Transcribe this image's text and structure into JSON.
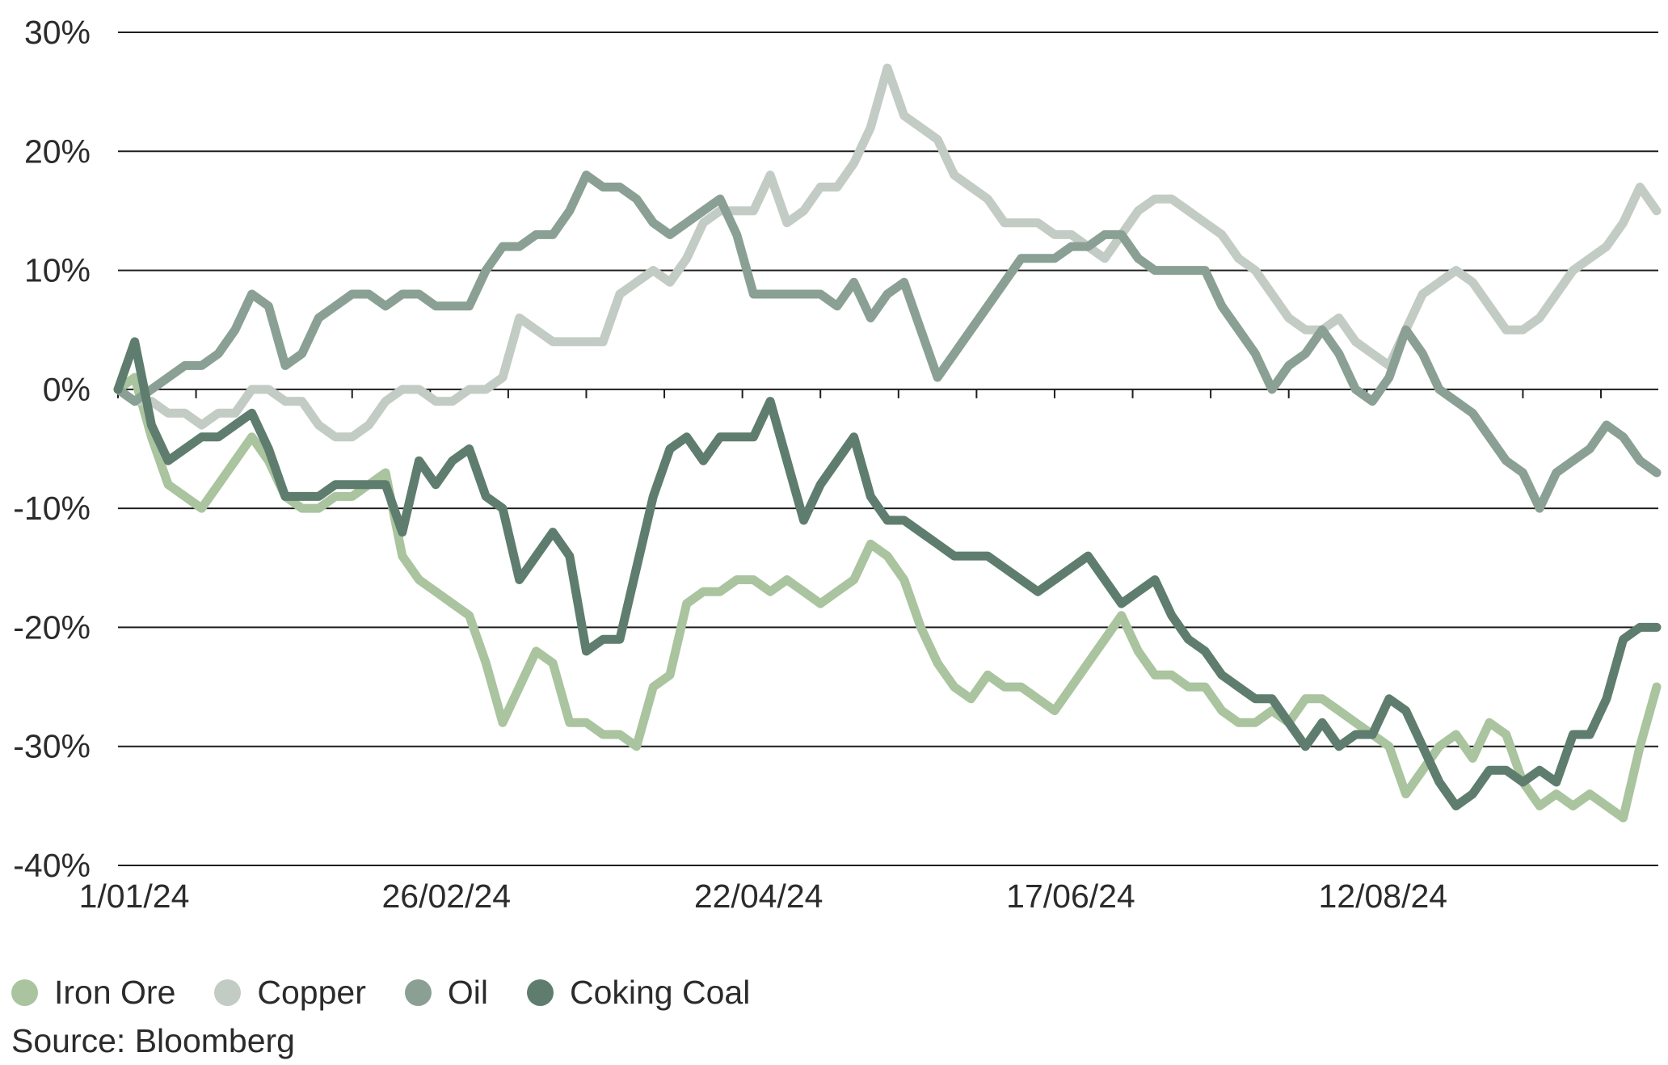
{
  "chart_data": {
    "type": "line",
    "ylim": [
      -40,
      30
    ],
    "yticks": [
      30,
      20,
      10,
      0,
      -10,
      -20,
      -30,
      -40
    ],
    "ytick_labels": [
      "30%",
      "20%",
      "10%",
      "0%",
      "-10%",
      "-20%",
      "-30%",
      "-40%"
    ],
    "xlim": [
      "2024-01-01",
      "2024-10-03"
    ],
    "xticks": [
      "2024-01-01",
      "2024-02-26",
      "2024-04-22",
      "2024-06-17",
      "2024-08-12"
    ],
    "xtick_labels": [
      "1/01/24",
      "26/02/24",
      "22/04/24",
      "17/06/24",
      "12/08/24"
    ],
    "grid": "horizontal",
    "legend": "bottom-left",
    "series": [
      {
        "name": "Iron Ore",
        "color": "#a9c49e",
        "x": [
          "2024-01-01",
          "2024-01-04",
          "2024-01-07",
          "2024-01-10",
          "2024-01-13",
          "2024-01-16",
          "2024-01-19",
          "2024-01-22",
          "2024-01-25",
          "2024-01-28",
          "2024-01-31",
          "2024-02-03",
          "2024-02-06",
          "2024-02-09",
          "2024-02-12",
          "2024-02-15",
          "2024-02-18",
          "2024-02-21",
          "2024-02-24",
          "2024-02-27",
          "2024-03-01",
          "2024-03-04",
          "2024-03-07",
          "2024-03-10",
          "2024-03-13",
          "2024-03-16",
          "2024-03-19",
          "2024-03-22",
          "2024-03-25",
          "2024-03-28",
          "2024-03-31",
          "2024-04-03",
          "2024-04-06",
          "2024-04-09",
          "2024-04-12",
          "2024-04-15",
          "2024-04-18",
          "2024-04-21",
          "2024-04-24",
          "2024-04-27",
          "2024-04-30",
          "2024-05-03",
          "2024-05-06",
          "2024-05-09",
          "2024-05-12",
          "2024-05-15",
          "2024-05-18",
          "2024-05-21",
          "2024-05-24",
          "2024-05-27",
          "2024-05-30",
          "2024-06-02",
          "2024-06-05",
          "2024-06-08",
          "2024-06-11",
          "2024-06-14",
          "2024-06-17",
          "2024-06-20",
          "2024-06-23",
          "2024-06-26",
          "2024-06-29",
          "2024-07-02",
          "2024-07-05",
          "2024-07-08",
          "2024-07-11",
          "2024-07-14",
          "2024-07-17",
          "2024-07-20",
          "2024-07-23",
          "2024-07-26",
          "2024-07-29",
          "2024-08-01",
          "2024-08-04",
          "2024-08-07",
          "2024-08-10",
          "2024-08-13",
          "2024-08-16",
          "2024-08-19",
          "2024-08-22",
          "2024-08-25",
          "2024-08-28",
          "2024-08-31",
          "2024-09-03",
          "2024-09-06",
          "2024-09-09",
          "2024-09-12",
          "2024-09-15",
          "2024-09-18",
          "2024-09-21",
          "2024-09-24",
          "2024-09-27",
          "2024-09-30",
          "2024-10-03"
        ],
        "values": [
          0,
          1,
          -4,
          -8,
          -9,
          -10,
          -8,
          -6,
          -4,
          -6,
          -9,
          -10,
          -10,
          -9,
          -9,
          -8,
          -7,
          -14,
          -16,
          -17,
          -18,
          -19,
          -23,
          -28,
          -25,
          -22,
          -23,
          -28,
          -28,
          -29,
          -29,
          -30,
          -25,
          -24,
          -18,
          -17,
          -17,
          -16,
          -16,
          -17,
          -16,
          -17,
          -18,
          -17,
          -16,
          -13,
          -14,
          -16,
          -20,
          -23,
          -25,
          -26,
          -24,
          -25,
          -25,
          -26,
          -27,
          -25,
          -23,
          -21,
          -19,
          -22,
          -24,
          -24,
          -25,
          -25,
          -27,
          -28,
          -28,
          -27,
          -28,
          -26,
          -26,
          -27,
          -28,
          -29,
          -30,
          -34,
          -32,
          -30,
          -29,
          -31,
          -28,
          -29,
          -33,
          -35,
          -34,
          -35,
          -34,
          -35,
          -36,
          -30,
          -25
        ]
      },
      {
        "name": "Copper",
        "color": "#c3cbc5",
        "x": [
          "2024-01-01",
          "2024-01-04",
          "2024-01-07",
          "2024-01-10",
          "2024-01-13",
          "2024-01-16",
          "2024-01-19",
          "2024-01-22",
          "2024-01-25",
          "2024-01-28",
          "2024-01-31",
          "2024-02-03",
          "2024-02-06",
          "2024-02-09",
          "2024-02-12",
          "2024-02-15",
          "2024-02-18",
          "2024-02-21",
          "2024-02-24",
          "2024-02-27",
          "2024-03-01",
          "2024-03-04",
          "2024-03-07",
          "2024-03-10",
          "2024-03-13",
          "2024-03-16",
          "2024-03-19",
          "2024-03-22",
          "2024-03-25",
          "2024-03-28",
          "2024-03-31",
          "2024-04-03",
          "2024-04-06",
          "2024-04-09",
          "2024-04-12",
          "2024-04-15",
          "2024-04-18",
          "2024-04-21",
          "2024-04-24",
          "2024-04-27",
          "2024-04-30",
          "2024-05-03",
          "2024-05-06",
          "2024-05-09",
          "2024-05-12",
          "2024-05-15",
          "2024-05-18",
          "2024-05-21",
          "2024-05-24",
          "2024-05-27",
          "2024-05-30",
          "2024-06-02",
          "2024-06-05",
          "2024-06-08",
          "2024-06-11",
          "2024-06-14",
          "2024-06-17",
          "2024-06-20",
          "2024-06-23",
          "2024-06-26",
          "2024-06-29",
          "2024-07-02",
          "2024-07-05",
          "2024-07-08",
          "2024-07-11",
          "2024-07-14",
          "2024-07-17",
          "2024-07-20",
          "2024-07-23",
          "2024-07-26",
          "2024-07-29",
          "2024-08-01",
          "2024-08-04",
          "2024-08-07",
          "2024-08-10",
          "2024-08-13",
          "2024-08-16",
          "2024-08-19",
          "2024-08-22",
          "2024-08-25",
          "2024-08-28",
          "2024-08-31",
          "2024-09-03",
          "2024-09-06",
          "2024-09-09",
          "2024-09-12",
          "2024-09-15",
          "2024-09-18",
          "2024-09-21",
          "2024-09-24",
          "2024-09-27",
          "2024-09-30",
          "2024-10-03"
        ],
        "values": [
          0,
          -1,
          -1,
          -2,
          -2,
          -3,
          -2,
          -2,
          0,
          0,
          -1,
          -1,
          -3,
          -4,
          -4,
          -3,
          -1,
          0,
          0,
          -1,
          -1,
          0,
          0,
          1,
          6,
          5,
          4,
          4,
          4,
          4,
          8,
          9,
          10,
          9,
          11,
          14,
          15,
          15,
          15,
          18,
          14,
          15,
          17,
          17,
          19,
          22,
          27,
          23,
          22,
          21,
          18,
          17,
          16,
          14,
          14,
          14,
          13,
          13,
          12,
          11,
          13,
          15,
          16,
          16,
          15,
          14,
          13,
          11,
          10,
          8,
          6,
          5,
          5,
          6,
          4,
          3,
          2,
          5,
          8,
          9,
          10,
          9,
          7,
          5,
          5,
          6,
          8,
          10,
          11,
          12,
          14,
          17,
          15
        ]
      },
      {
        "name": "Oil",
        "color": "#8aa094",
        "x": [
          "2024-01-01",
          "2024-01-04",
          "2024-01-07",
          "2024-01-10",
          "2024-01-13",
          "2024-01-16",
          "2024-01-19",
          "2024-01-22",
          "2024-01-25",
          "2024-01-28",
          "2024-01-31",
          "2024-02-03",
          "2024-02-06",
          "2024-02-09",
          "2024-02-12",
          "2024-02-15",
          "2024-02-18",
          "2024-02-21",
          "2024-02-24",
          "2024-02-27",
          "2024-03-01",
          "2024-03-04",
          "2024-03-07",
          "2024-03-10",
          "2024-03-13",
          "2024-03-16",
          "2024-03-19",
          "2024-03-22",
          "2024-03-25",
          "2024-03-28",
          "2024-03-31",
          "2024-04-03",
          "2024-04-06",
          "2024-04-09",
          "2024-04-12",
          "2024-04-15",
          "2024-04-18",
          "2024-04-21",
          "2024-04-24",
          "2024-04-27",
          "2024-04-30",
          "2024-05-03",
          "2024-05-06",
          "2024-05-09",
          "2024-05-12",
          "2024-05-15",
          "2024-05-18",
          "2024-05-21",
          "2024-05-24",
          "2024-05-27",
          "2024-05-30",
          "2024-06-02",
          "2024-06-05",
          "2024-06-08",
          "2024-06-11",
          "2024-06-14",
          "2024-06-17",
          "2024-06-20",
          "2024-06-23",
          "2024-06-26",
          "2024-06-29",
          "2024-07-02",
          "2024-07-05",
          "2024-07-08",
          "2024-07-11",
          "2024-07-14",
          "2024-07-17",
          "2024-07-20",
          "2024-07-23",
          "2024-07-26",
          "2024-07-29",
          "2024-08-01",
          "2024-08-04",
          "2024-08-07",
          "2024-08-10",
          "2024-08-13",
          "2024-08-16",
          "2024-08-19",
          "2024-08-22",
          "2024-08-25",
          "2024-08-28",
          "2024-08-31",
          "2024-09-03",
          "2024-09-06",
          "2024-09-09",
          "2024-09-12",
          "2024-09-15",
          "2024-09-18",
          "2024-09-21",
          "2024-09-24",
          "2024-09-27",
          "2024-09-30",
          "2024-10-03"
        ],
        "values": [
          0,
          -1,
          0,
          1,
          2,
          2,
          3,
          5,
          8,
          7,
          2,
          3,
          6,
          7,
          8,
          8,
          7,
          8,
          8,
          7,
          7,
          7,
          10,
          12,
          12,
          13,
          13,
          15,
          18,
          17,
          17,
          16,
          14,
          13,
          14,
          15,
          16,
          13,
          8,
          8,
          8,
          8,
          8,
          7,
          9,
          6,
          8,
          9,
          5,
          1,
          3,
          5,
          7,
          9,
          11,
          11,
          11,
          12,
          12,
          13,
          13,
          11,
          10,
          10,
          10,
          10,
          7,
          5,
          3,
          0,
          2,
          3,
          5,
          3,
          0,
          -1,
          1,
          5,
          3,
          0,
          -1,
          -2,
          -4,
          -6,
          -7,
          -10,
          -7,
          -6,
          -5,
          -3,
          -4,
          -6,
          -7
        ]
      },
      {
        "name": "Coking Coal",
        "color": "#5e7d6e",
        "x": [
          "2024-01-01",
          "2024-01-04",
          "2024-01-07",
          "2024-01-10",
          "2024-01-13",
          "2024-01-16",
          "2024-01-19",
          "2024-01-22",
          "2024-01-25",
          "2024-01-28",
          "2024-01-31",
          "2024-02-03",
          "2024-02-06",
          "2024-02-09",
          "2024-02-12",
          "2024-02-15",
          "2024-02-18",
          "2024-02-21",
          "2024-02-24",
          "2024-02-27",
          "2024-03-01",
          "2024-03-04",
          "2024-03-07",
          "2024-03-10",
          "2024-03-13",
          "2024-03-16",
          "2024-03-19",
          "2024-03-22",
          "2024-03-25",
          "2024-03-28",
          "2024-03-31",
          "2024-04-03",
          "2024-04-06",
          "2024-04-09",
          "2024-04-12",
          "2024-04-15",
          "2024-04-18",
          "2024-04-21",
          "2024-04-24",
          "2024-04-27",
          "2024-04-30",
          "2024-05-03",
          "2024-05-06",
          "2024-05-09",
          "2024-05-12",
          "2024-05-15",
          "2024-05-18",
          "2024-05-21",
          "2024-05-24",
          "2024-05-27",
          "2024-05-30",
          "2024-06-02",
          "2024-06-05",
          "2024-06-08",
          "2024-06-11",
          "2024-06-14",
          "2024-06-17",
          "2024-06-20",
          "2024-06-23",
          "2024-06-26",
          "2024-06-29",
          "2024-07-02",
          "2024-07-05",
          "2024-07-08",
          "2024-07-11",
          "2024-07-14",
          "2024-07-17",
          "2024-07-20",
          "2024-07-23",
          "2024-07-26",
          "2024-07-29",
          "2024-08-01",
          "2024-08-04",
          "2024-08-07",
          "2024-08-10",
          "2024-08-13",
          "2024-08-16",
          "2024-08-19",
          "2024-08-22",
          "2024-08-25",
          "2024-08-28",
          "2024-08-31",
          "2024-09-03",
          "2024-09-06",
          "2024-09-09",
          "2024-09-12",
          "2024-09-15",
          "2024-09-18",
          "2024-09-21",
          "2024-09-24",
          "2024-09-27",
          "2024-09-30",
          "2024-10-03"
        ],
        "values": [
          0,
          4,
          -3,
          -6,
          -5,
          -4,
          -4,
          -3,
          -2,
          -5,
          -9,
          -9,
          -9,
          -8,
          -8,
          -8,
          -8,
          -12,
          -6,
          -8,
          -6,
          -5,
          -9,
          -10,
          -16,
          -14,
          -12,
          -14,
          -22,
          -21,
          -21,
          -15,
          -9,
          -5,
          -4,
          -6,
          -4,
          -4,
          -4,
          -1,
          -6,
          -11,
          -8,
          -6,
          -4,
          -9,
          -11,
          -11,
          -12,
          -13,
          -14,
          -14,
          -14,
          -15,
          -16,
          -17,
          -16,
          -15,
          -14,
          -16,
          -18,
          -17,
          -16,
          -19,
          -21,
          -22,
          -24,
          -25,
          -26,
          -26,
          -28,
          -30,
          -28,
          -30,
          -29,
          -29,
          -26,
          -27,
          -30,
          -33,
          -35,
          -34,
          -32,
          -32,
          -33,
          -32,
          -33,
          -29,
          -29,
          -26,
          -21,
          -20,
          -20
        ]
      }
    ]
  },
  "legend": {
    "items": [
      {
        "label": "Iron Ore",
        "color": "#a9c49e"
      },
      {
        "label": "Copper",
        "color": "#c3cbc5"
      },
      {
        "label": "Oil",
        "color": "#8aa094"
      },
      {
        "label": "Coking Coal",
        "color": "#5e7d6e"
      }
    ]
  },
  "source": "Source: Bloomberg"
}
